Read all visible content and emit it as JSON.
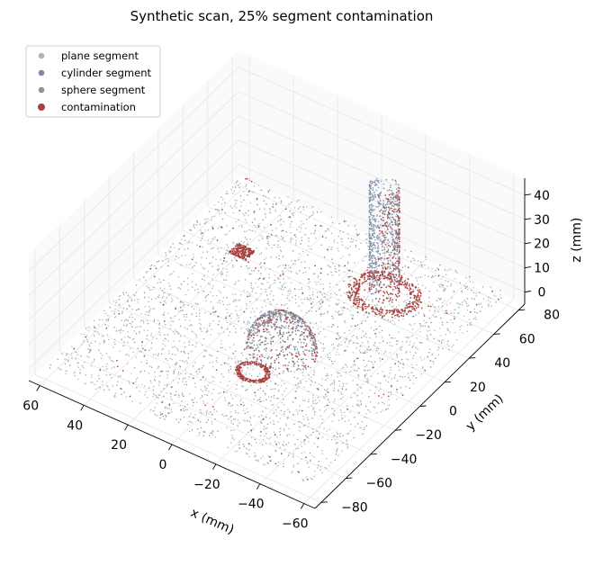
{
  "chart_data": {
    "type": "scatter",
    "title": "Synthetic scan, 25% segment contamination",
    "xlabel": "x (mm)",
    "ylabel": "y (mm)",
    "zlabel": "z (mm)",
    "xlim": [
      -65,
      65
    ],
    "ylim": [
      -85,
      85
    ],
    "zlim": [
      -5,
      47
    ],
    "xticks": [
      -60,
      -40,
      -20,
      0,
      20,
      40,
      60
    ],
    "yticks": [
      -80,
      -60,
      -40,
      -20,
      0,
      20,
      40,
      60,
      80
    ],
    "zticks": [
      0,
      10,
      20,
      30,
      40
    ],
    "xtick_labels": [
      "−60",
      "−40",
      "−20",
      "0",
      "20",
      "40",
      "60"
    ],
    "ytick_labels": [
      "−80",
      "−60",
      "−40",
      "−20",
      "0",
      "20",
      "40",
      "60",
      "80"
    ],
    "ztick_labels": [
      "0",
      "10",
      "20",
      "30",
      "40"
    ],
    "grid": true,
    "legend_position": "top-left",
    "series": [
      {
        "name": "plane segment",
        "color": "#b5b5b5",
        "shape": "plane z=0",
        "extent_x": [
          -60,
          60
        ],
        "extent_y": [
          -80,
          80
        ],
        "approx_points": 3000
      },
      {
        "name": "cylinder segment",
        "color": "#7b8aa8",
        "shape": "vertical cylinder",
        "center_xy": [
          -22,
          48
        ],
        "radius": 6,
        "z_range": [
          0,
          45
        ],
        "approx_points": 900
      },
      {
        "name": "sphere segment",
        "color": "#8f9299",
        "shape": "hemisphere",
        "center_xyz": [
          -8,
          -10,
          0
        ],
        "radius": 14,
        "approx_points": 700
      },
      {
        "name": "contamination",
        "color": "#a8413f",
        "regions": [
          {
            "shape": "ring z=0",
            "center_xy": [
              -22,
              48
            ],
            "r_range": [
              10,
              15
            ]
          },
          {
            "shape": "partial cylinder face",
            "center_xy": [
              -22,
              48
            ],
            "radius": 6,
            "z_range": [
              0,
              45
            ]
          },
          {
            "shape": "ring z=0",
            "center_xy": [
              -6,
              -30
            ],
            "r_range": [
              5,
              7
            ]
          },
          {
            "shape": "cluster z=0",
            "center_xy": [
              36,
              36
            ],
            "half_size": 4
          },
          {
            "shape": "sphere crown points",
            "center_xyz": [
              -8,
              -10,
              0
            ],
            "radius": 14
          },
          {
            "shape": "scattered on plane",
            "extent_x": [
              -60,
              60
            ],
            "extent_y": [
              -80,
              80
            ]
          }
        ]
      }
    ]
  }
}
